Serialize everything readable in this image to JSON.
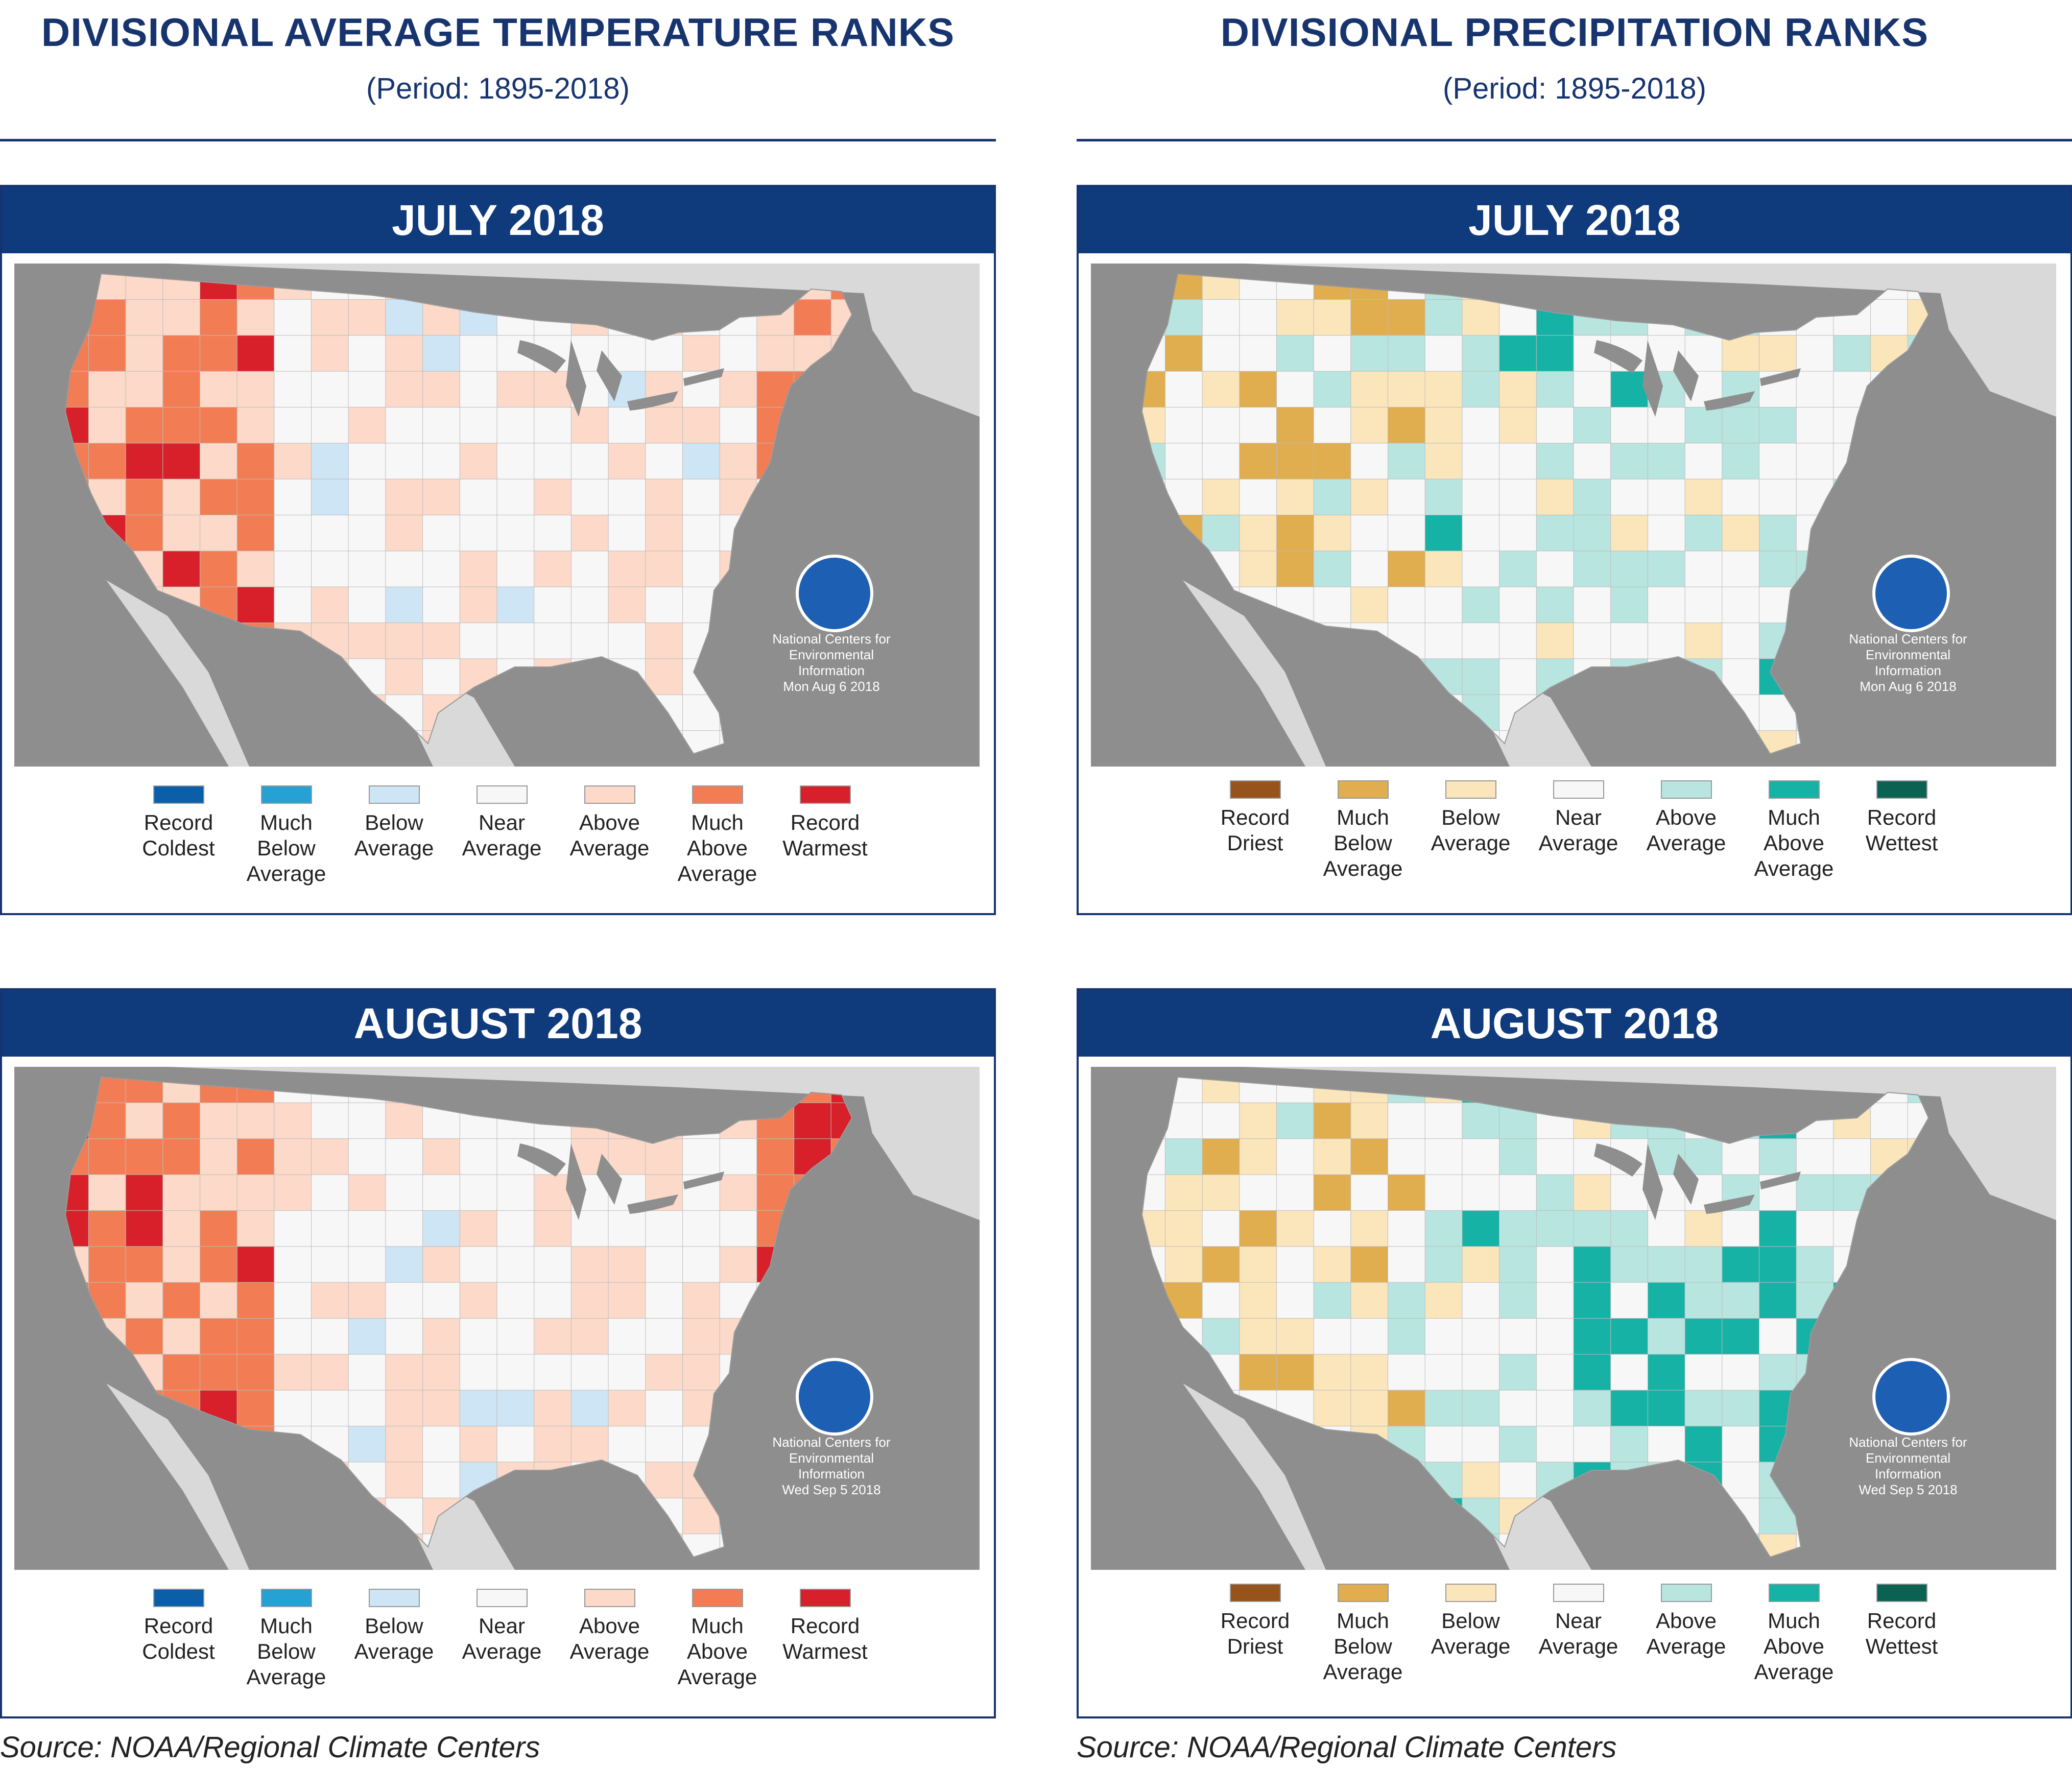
{
  "columns": {
    "left": {
      "title": "DIVISIONAL AVERAGE TEMPERATURE RANKS",
      "period": "(Period: 1895-2018)",
      "source": "Source: NOAA/Regional Climate Centers"
    },
    "right": {
      "title": "DIVISIONAL PRECIPITATION RANKS",
      "period": "(Period: 1895-2018)",
      "source": "Source: NOAA/Regional Climate Centers"
    }
  },
  "noaa_credit": "National Centers for\nEnvironmental\nInformation",
  "panels": {
    "temp_july": {
      "month": "JULY 2018",
      "date": "Mon Aug  6 2018",
      "legend": [
        {
          "label": "Record\nColdest",
          "color": "#0b5fa9"
        },
        {
          "label": "Much\nBelow\nAverage",
          "color": "#27a0d4"
        },
        {
          "label": "Below\nAverage",
          "color": "#cde5f4"
        },
        {
          "label": "Near\nAverage",
          "color": "#f7f7f7"
        },
        {
          "label": "Above\nAverage",
          "color": "#fcd9c8"
        },
        {
          "label": "Much\nAbove\nAverage",
          "color": "#f27d55"
        },
        {
          "label": "Record\nWarmest",
          "color": "#d7202a"
        }
      ]
    },
    "temp_august": {
      "month": "AUGUST 2018",
      "date": "Wed Sep  5 2018",
      "legend": [
        {
          "label": "Record\nColdest",
          "color": "#0b5fa9"
        },
        {
          "label": "Much\nBelow\nAverage",
          "color": "#27a0d4"
        },
        {
          "label": "Below\nAverage",
          "color": "#cde5f4"
        },
        {
          "label": "Near\nAverage",
          "color": "#f7f7f7"
        },
        {
          "label": "Above\nAverage",
          "color": "#fcd9c8"
        },
        {
          "label": "Much\nAbove\nAverage",
          "color": "#f27d55"
        },
        {
          "label": "Record\nWarmest",
          "color": "#d7202a"
        }
      ]
    },
    "precip_july": {
      "month": "JULY 2018",
      "date": "Mon Aug  6 2018",
      "legend": [
        {
          "label": "Record\nDriest",
          "color": "#96541c"
        },
        {
          "label": "Much\nBelow\nAverage",
          "color": "#e0ad4f"
        },
        {
          "label": "Below\nAverage",
          "color": "#fbe5bb"
        },
        {
          "label": "Near\nAverage",
          "color": "#f7f7f7"
        },
        {
          "label": "Above\nAverage",
          "color": "#b8e5e0"
        },
        {
          "label": "Much\nAbove\nAverage",
          "color": "#16b2a6"
        },
        {
          "label": "Record\nWettest",
          "color": "#0b6152"
        }
      ]
    },
    "precip_august": {
      "month": "AUGUST 2018",
      "date": "Wed Sep  5 2018",
      "legend": [
        {
          "label": "Record\nDriest",
          "color": "#96541c"
        },
        {
          "label": "Much\nBelow\nAverage",
          "color": "#e0ad4f"
        },
        {
          "label": "Below\nAverage",
          "color": "#fbe5bb"
        },
        {
          "label": "Near\nAverage",
          "color": "#f7f7f7"
        },
        {
          "label": "Above\nAverage",
          "color": "#b8e5e0"
        },
        {
          "label": "Much\nAbove\nAverage",
          "color": "#16b2a6"
        },
        {
          "label": "Record\nWettest",
          "color": "#0b6152"
        }
      ]
    }
  },
  "colors": {
    "navy": "#17346f",
    "header": "#0f3a7c",
    "ocean": "#8e8e8e",
    "land_outside": "#d9d9d9",
    "border_line": "#bdbdbd"
  }
}
